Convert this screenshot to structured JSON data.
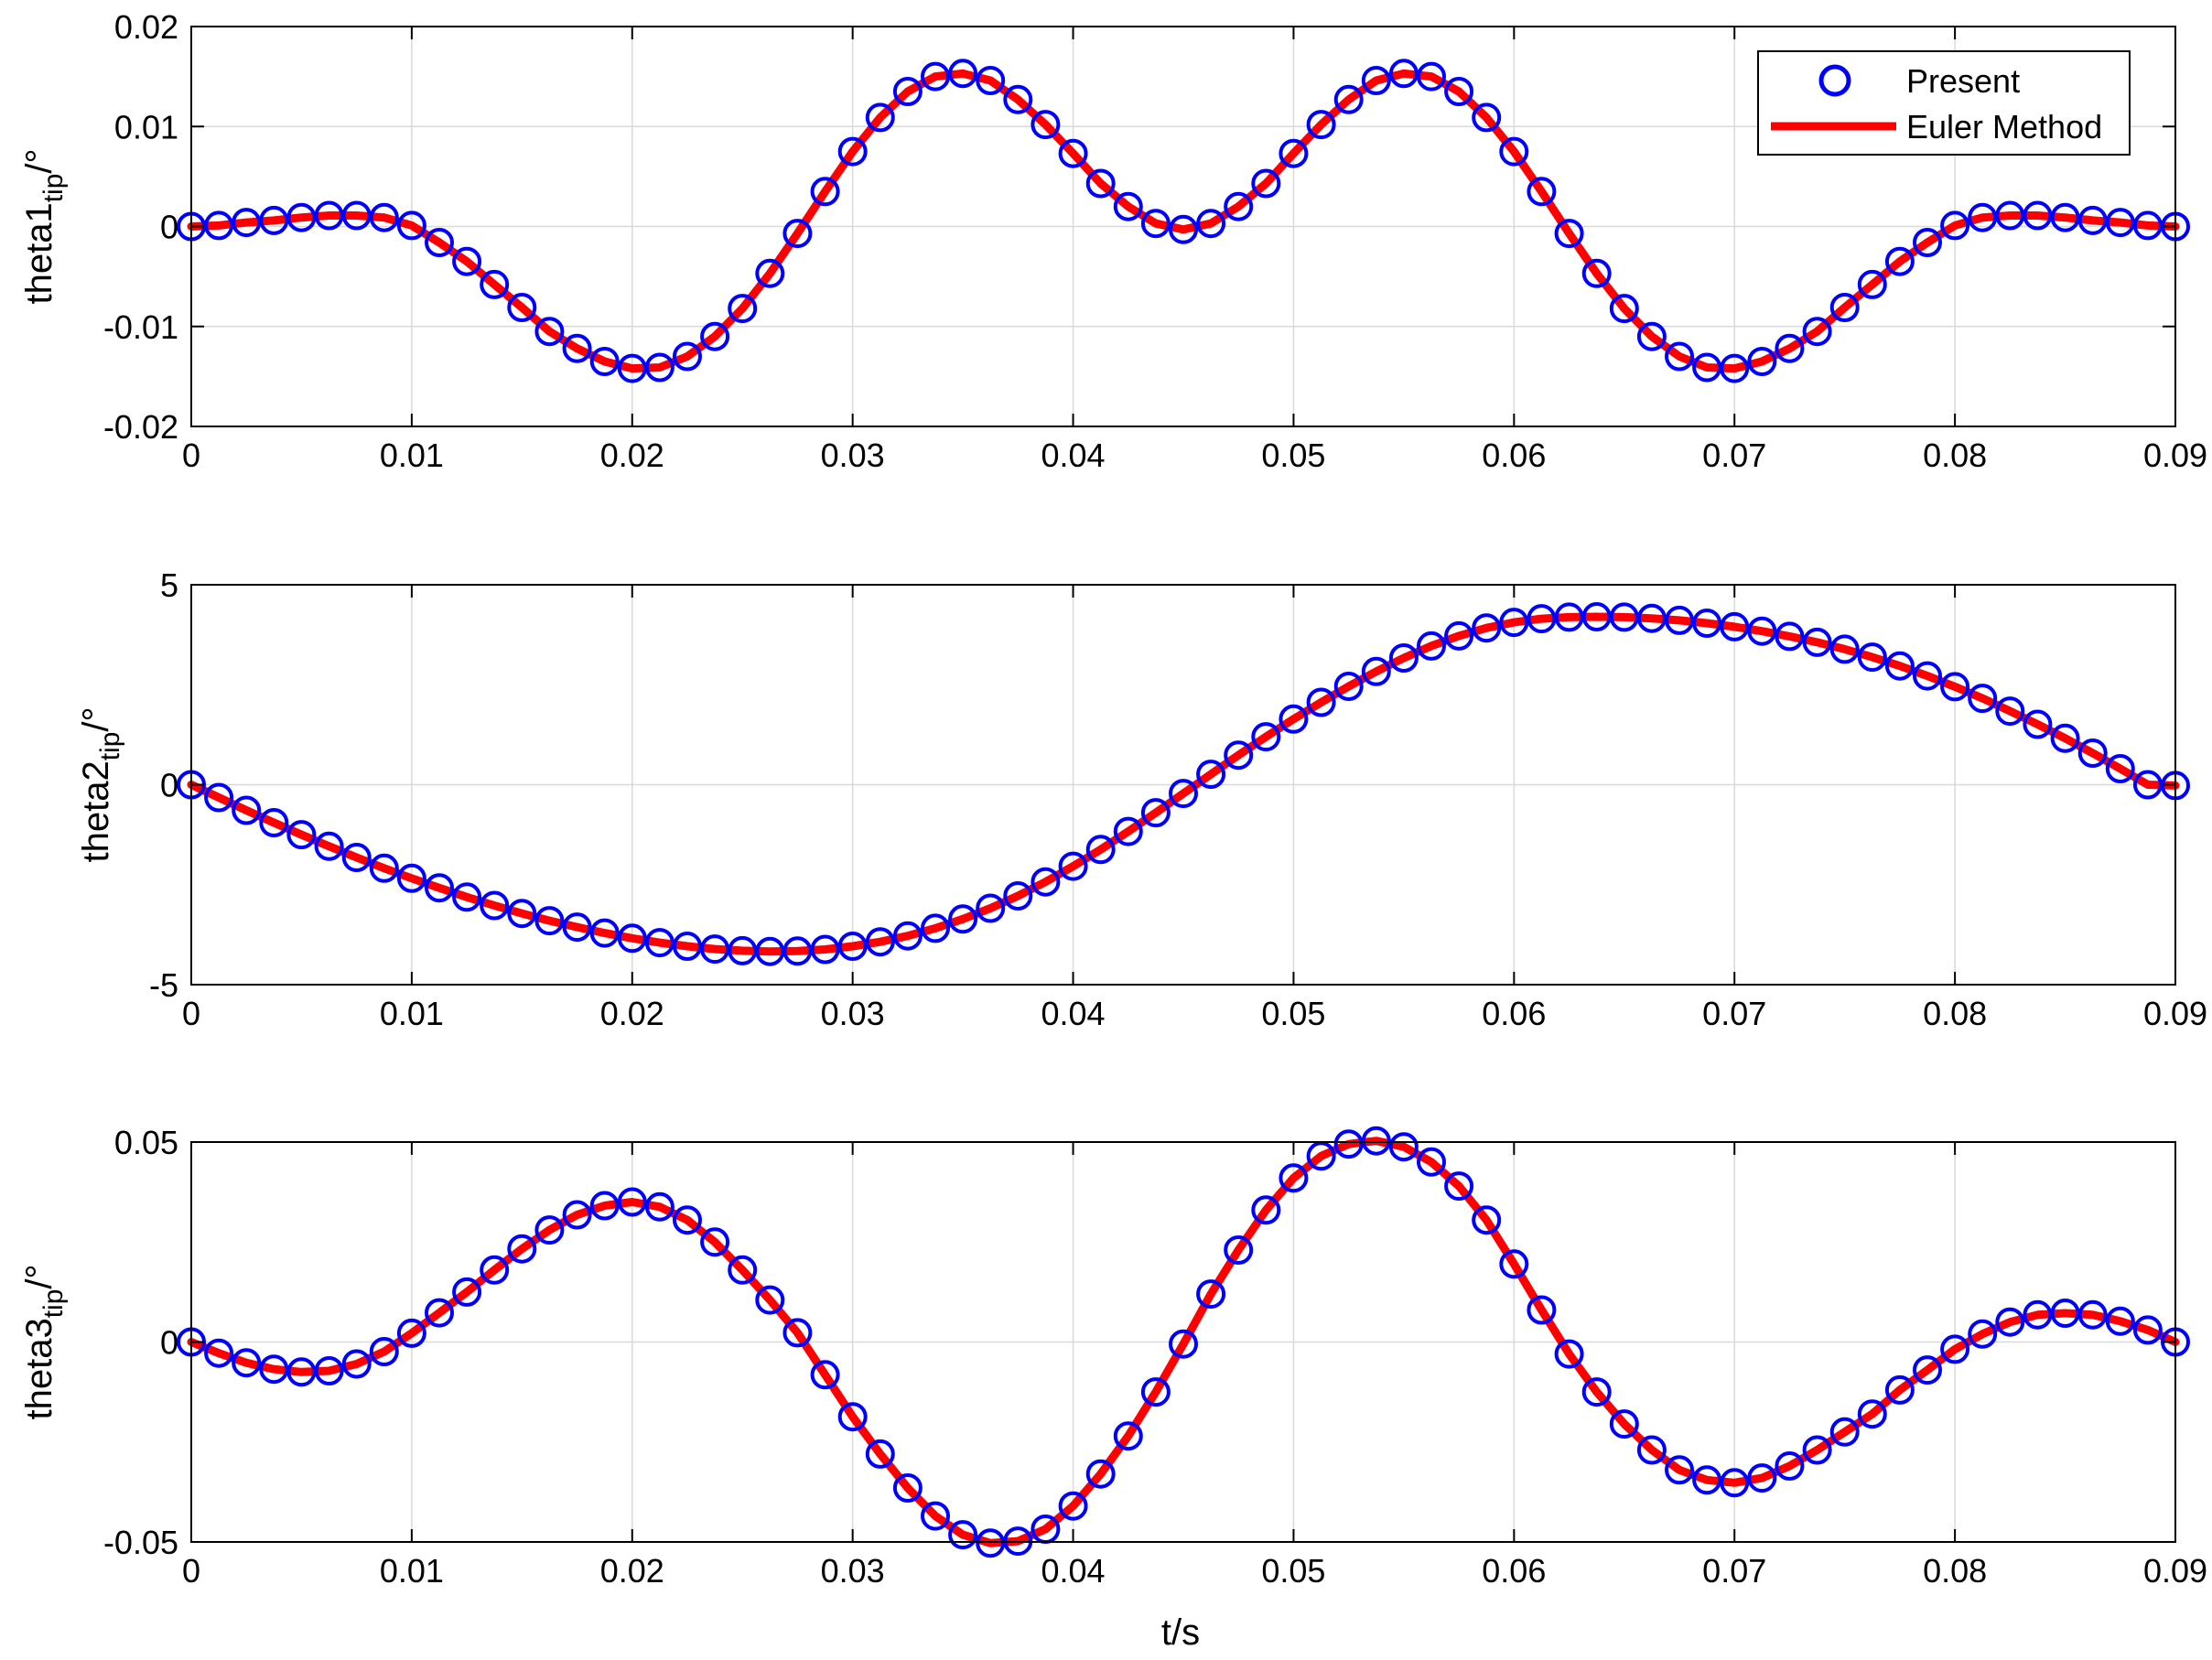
{
  "figure": {
    "xlabel": "t/s",
    "legend": {
      "placement": "top-right",
      "entries": [
        {
          "label": "Present",
          "marker": "open-circle",
          "color": "#0000ff"
        },
        {
          "label": "Euler Method",
          "marker": "line",
          "color": "#ff0000"
        }
      ]
    }
  },
  "chart_data": [
    {
      "type": "line",
      "ylabel_main": "theta1",
      "ylabel_sub": "tip",
      "ylabel_unit": "/°",
      "xlim": [
        0,
        0.09
      ],
      "ylim": [
        -0.02,
        0.02
      ],
      "grid": true,
      "xticks": [
        0,
        0.01,
        0.02,
        0.03,
        0.04,
        0.05,
        0.06,
        0.07,
        0.08,
        0.09
      ],
      "xtick_labels": [
        "0",
        "0.01",
        "0.02",
        "0.03",
        "0.04",
        "0.05",
        "0.06",
        "0.07",
        "0.08",
        "0.09"
      ],
      "yticks": [
        -0.02,
        -0.01,
        0,
        0.01,
        0.02
      ],
      "ytick_labels": [
        "-0.02",
        "-0.01",
        "0",
        "0.01",
        "0.02"
      ],
      "x": [
        0,
        0.00125,
        0.0025,
        0.00375,
        0.005,
        0.00625,
        0.0075,
        0.00875,
        0.01,
        0.01125,
        0.0125,
        0.01375,
        0.015,
        0.01625,
        0.0175,
        0.01875,
        0.02,
        0.02125,
        0.0225,
        0.02375,
        0.025,
        0.02625,
        0.0275,
        0.02875,
        0.03,
        0.03125,
        0.0325,
        0.03375,
        0.035,
        0.03625,
        0.0375,
        0.03875,
        0.04,
        0.04125,
        0.0425,
        0.04375,
        0.045,
        0.04625,
        0.0475,
        0.04875,
        0.05,
        0.05125,
        0.0525,
        0.05375,
        0.055,
        0.05625,
        0.0575,
        0.05875,
        0.06,
        0.06125,
        0.0625,
        0.06375,
        0.065,
        0.06625,
        0.0675,
        0.06875,
        0.07,
        0.07125,
        0.0725,
        0.07375,
        0.075,
        0.07625,
        0.0775,
        0.07875,
        0.08,
        0.08125,
        0.0825,
        0.08375,
        0.085,
        0.08625,
        0.0875,
        0.08875,
        0.09
      ],
      "series": [
        {
          "name": "Present",
          "style": "markers",
          "color": "#0000ff",
          "values": [
            0,
            0.0001,
            0.0004,
            0.0006,
            0.0009,
            0.0011,
            0.0011,
            0.0009,
            0.0001,
            -0.0016,
            -0.0035,
            -0.0058,
            -0.0081,
            -0.0105,
            -0.0122,
            -0.0135,
            -0.0142,
            -0.0141,
            -0.013,
            -0.011,
            -0.0082,
            -0.0047,
            -0.0007,
            0.0035,
            0.0075,
            0.0109,
            0.0135,
            0.015,
            0.0153,
            0.0146,
            0.0127,
            0.0102,
            0.0073,
            0.0043,
            0.002,
            0.0003,
            -0.0003,
            0.0003,
            0.002,
            0.0043,
            0.0073,
            0.0102,
            0.0127,
            0.0146,
            0.0153,
            0.015,
            0.0135,
            0.0109,
            0.0075,
            0.0035,
            -0.0007,
            -0.0047,
            -0.0082,
            -0.011,
            -0.013,
            -0.0141,
            -0.0142,
            -0.0135,
            -0.0122,
            -0.0105,
            -0.0081,
            -0.0058,
            -0.0035,
            -0.0016,
            0.0001,
            0.0009,
            0.0011,
            0.0011,
            0.0009,
            0.0006,
            0.0004,
            0.0001,
            0
          ]
        },
        {
          "name": "Euler Method",
          "style": "line",
          "color": "#ff0000",
          "values": [
            0,
            0.0001,
            0.0004,
            0.0006,
            0.0009,
            0.0011,
            0.0011,
            0.0009,
            0.0001,
            -0.0016,
            -0.0035,
            -0.0058,
            -0.0081,
            -0.0105,
            -0.0122,
            -0.0135,
            -0.0142,
            -0.0141,
            -0.013,
            -0.011,
            -0.0082,
            -0.0047,
            -0.0007,
            0.0035,
            0.0075,
            0.0109,
            0.0135,
            0.015,
            0.0153,
            0.0146,
            0.0127,
            0.0102,
            0.0073,
            0.0043,
            0.002,
            0.0003,
            -0.0003,
            0.0003,
            0.002,
            0.0043,
            0.0073,
            0.0102,
            0.0127,
            0.0146,
            0.0153,
            0.015,
            0.0135,
            0.0109,
            0.0075,
            0.0035,
            -0.0007,
            -0.0047,
            -0.0082,
            -0.011,
            -0.013,
            -0.0141,
            -0.0142,
            -0.0135,
            -0.0122,
            -0.0105,
            -0.0081,
            -0.0058,
            -0.0035,
            -0.0016,
            0.0001,
            0.0009,
            0.0011,
            0.0011,
            0.0009,
            0.0006,
            0.0004,
            0.0001,
            0
          ]
        }
      ]
    },
    {
      "type": "line",
      "ylabel_main": "theta2",
      "ylabel_sub": "tip",
      "ylabel_unit": "/°",
      "xlim": [
        0,
        0.09
      ],
      "ylim": [
        -5,
        5
      ],
      "grid": true,
      "xticks": [
        0,
        0.01,
        0.02,
        0.03,
        0.04,
        0.05,
        0.06,
        0.07,
        0.08,
        0.09
      ],
      "xtick_labels": [
        "0",
        "0.01",
        "0.02",
        "0.03",
        "0.04",
        "0.05",
        "0.06",
        "0.07",
        "0.08",
        "0.09"
      ],
      "yticks": [
        -5,
        0,
        5
      ],
      "ytick_labels": [
        "-5",
        "0",
        "5"
      ],
      "x": [
        0,
        0.00125,
        0.0025,
        0.00375,
        0.005,
        0.00625,
        0.0075,
        0.00875,
        0.01,
        0.01125,
        0.0125,
        0.01375,
        0.015,
        0.01625,
        0.0175,
        0.01875,
        0.02,
        0.02125,
        0.0225,
        0.02375,
        0.025,
        0.02625,
        0.0275,
        0.02875,
        0.03,
        0.03125,
        0.0325,
        0.03375,
        0.035,
        0.03625,
        0.0375,
        0.03875,
        0.04,
        0.04125,
        0.0425,
        0.04375,
        0.045,
        0.04625,
        0.0475,
        0.04875,
        0.05,
        0.05125,
        0.0525,
        0.05375,
        0.055,
        0.05625,
        0.0575,
        0.05875,
        0.06,
        0.06125,
        0.0625,
        0.06375,
        0.065,
        0.06625,
        0.0675,
        0.06875,
        0.07,
        0.07125,
        0.0725,
        0.07375,
        0.075,
        0.07625,
        0.0775,
        0.07875,
        0.08,
        0.08125,
        0.0825,
        0.08375,
        0.085,
        0.08625,
        0.0875,
        0.08875,
        0.09
      ],
      "series": [
        {
          "name": "Present",
          "style": "markers",
          "color": "#0000ff",
          "values": [
            0,
            -0.32,
            -0.64,
            -0.95,
            -1.25,
            -1.54,
            -1.82,
            -2.09,
            -2.34,
            -2.58,
            -2.81,
            -3.02,
            -3.22,
            -3.4,
            -3.56,
            -3.71,
            -3.84,
            -3.95,
            -4.04,
            -4.11,
            -4.15,
            -4.17,
            -4.16,
            -4.12,
            -4.04,
            -3.93,
            -3.78,
            -3.59,
            -3.36,
            -3.09,
            -2.78,
            -2.43,
            -2.04,
            -1.62,
            -1.17,
            -0.7,
            -0.22,
            0.26,
            0.74,
            1.2,
            1.64,
            2.06,
            2.46,
            2.83,
            3.17,
            3.47,
            3.72,
            3.92,
            4.06,
            4.15,
            4.19,
            4.2,
            4.19,
            4.16,
            4.11,
            4.04,
            3.95,
            3.84,
            3.71,
            3.56,
            3.39,
            3.19,
            2.97,
            2.72,
            2.45,
            2.16,
            1.84,
            1.51,
            1.16,
            0.79,
            0.4,
            0.0,
            -0.02
          ]
        },
        {
          "name": "Euler Method",
          "style": "line",
          "color": "#ff0000",
          "values": [
            0,
            -0.32,
            -0.64,
            -0.95,
            -1.25,
            -1.54,
            -1.82,
            -2.09,
            -2.34,
            -2.58,
            -2.81,
            -3.02,
            -3.22,
            -3.4,
            -3.56,
            -3.71,
            -3.84,
            -3.95,
            -4.04,
            -4.11,
            -4.15,
            -4.17,
            -4.16,
            -4.12,
            -4.04,
            -3.93,
            -3.78,
            -3.59,
            -3.36,
            -3.09,
            -2.78,
            -2.43,
            -2.04,
            -1.62,
            -1.17,
            -0.7,
            -0.22,
            0.26,
            0.74,
            1.2,
            1.64,
            2.06,
            2.46,
            2.83,
            3.17,
            3.47,
            3.72,
            3.92,
            4.06,
            4.15,
            4.19,
            4.2,
            4.19,
            4.16,
            4.11,
            4.04,
            3.95,
            3.84,
            3.71,
            3.56,
            3.39,
            3.19,
            2.97,
            2.72,
            2.45,
            2.16,
            1.84,
            1.51,
            1.16,
            0.79,
            0.4,
            0.0,
            -0.02
          ]
        }
      ]
    },
    {
      "type": "line",
      "ylabel_main": "theta3",
      "ylabel_sub": "tip",
      "ylabel_unit": "/°",
      "xlim": [
        0,
        0.09
      ],
      "ylim": [
        -0.05,
        0.05
      ],
      "grid": true,
      "xticks": [
        0,
        0.01,
        0.02,
        0.03,
        0.04,
        0.05,
        0.06,
        0.07,
        0.08,
        0.09
      ],
      "xtick_labels": [
        "0",
        "0.01",
        "0.02",
        "0.03",
        "0.04",
        "0.05",
        "0.06",
        "0.07",
        "0.08",
        "0.09"
      ],
      "yticks": [
        -0.05,
        0,
        0.05
      ],
      "ytick_labels": [
        "-0.05",
        "0",
        "0.05"
      ],
      "x": [
        0,
        0.00125,
        0.0025,
        0.00375,
        0.005,
        0.00625,
        0.0075,
        0.00875,
        0.01,
        0.01125,
        0.0125,
        0.01375,
        0.015,
        0.01625,
        0.0175,
        0.01875,
        0.02,
        0.02125,
        0.0225,
        0.02375,
        0.025,
        0.02625,
        0.0275,
        0.02875,
        0.03,
        0.03125,
        0.0325,
        0.03375,
        0.035,
        0.03625,
        0.0375,
        0.03875,
        0.04,
        0.04125,
        0.0425,
        0.04375,
        0.045,
        0.04625,
        0.0475,
        0.04875,
        0.05,
        0.05125,
        0.0525,
        0.05375,
        0.055,
        0.05625,
        0.0575,
        0.05875,
        0.06,
        0.06125,
        0.0625,
        0.06375,
        0.065,
        0.06625,
        0.0675,
        0.06875,
        0.07,
        0.07125,
        0.0725,
        0.07375,
        0.075,
        0.07625,
        0.0775,
        0.07875,
        0.08,
        0.08125,
        0.0825,
        0.08375,
        0.085,
        0.08625,
        0.0875,
        0.08875,
        0.09
      ],
      "series": [
        {
          "name": "Present",
          "style": "markers",
          "color": "#0000ff",
          "values": [
            0,
            -0.0028,
            -0.0052,
            -0.0068,
            -0.0075,
            -0.0072,
            -0.0055,
            -0.0024,
            0.0022,
            0.0073,
            0.0125,
            0.018,
            0.0233,
            0.028,
            0.0318,
            0.0341,
            0.035,
            0.0338,
            0.0305,
            0.025,
            0.018,
            0.0105,
            0.0023,
            -0.0082,
            -0.0187,
            -0.028,
            -0.0365,
            -0.0435,
            -0.0482,
            -0.0503,
            -0.0498,
            -0.0468,
            -0.041,
            -0.033,
            -0.0235,
            -0.0125,
            -0.0005,
            0.012,
            0.023,
            0.033,
            0.041,
            0.0465,
            0.0495,
            0.0503,
            0.0488,
            0.045,
            0.039,
            0.0305,
            0.0195,
            0.008,
            -0.003,
            -0.0125,
            -0.0205,
            -0.027,
            -0.032,
            -0.0345,
            -0.0352,
            -0.034,
            -0.031,
            -0.027,
            -0.0225,
            -0.018,
            -0.012,
            -0.007,
            -0.0018,
            0.002,
            0.005,
            0.0068,
            0.0072,
            0.0068,
            0.0052,
            0.003,
            0
          ]
        },
        {
          "name": "Euler Method",
          "style": "line",
          "color": "#ff0000",
          "values": [
            0,
            -0.0028,
            -0.0052,
            -0.0068,
            -0.0075,
            -0.0072,
            -0.0055,
            -0.0024,
            0.0022,
            0.0073,
            0.0125,
            0.018,
            0.0233,
            0.028,
            0.0318,
            0.0341,
            0.035,
            0.0338,
            0.0305,
            0.025,
            0.018,
            0.0105,
            0.0023,
            -0.0082,
            -0.0187,
            -0.028,
            -0.0365,
            -0.0435,
            -0.0482,
            -0.0503,
            -0.0498,
            -0.0468,
            -0.041,
            -0.033,
            -0.0235,
            -0.0125,
            -0.0005,
            0.012,
            0.023,
            0.033,
            0.041,
            0.0465,
            0.0495,
            0.0503,
            0.0488,
            0.045,
            0.039,
            0.0305,
            0.0195,
            0.008,
            -0.003,
            -0.0125,
            -0.0205,
            -0.027,
            -0.032,
            -0.0345,
            -0.0352,
            -0.034,
            -0.031,
            -0.027,
            -0.0225,
            -0.018,
            -0.012,
            -0.007,
            -0.0018,
            0.002,
            0.005,
            0.0068,
            0.0072,
            0.0068,
            0.0052,
            0.003,
            0
          ]
        }
      ]
    }
  ]
}
